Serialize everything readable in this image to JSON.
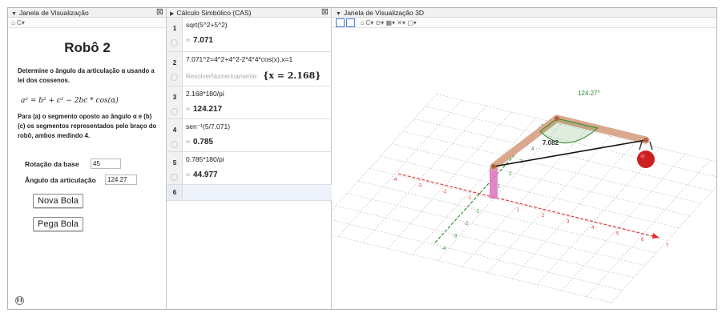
{
  "left": {
    "header": "Janela de Visualização",
    "toolbar": "⌂ C▾",
    "title": "Robô 2",
    "desc1": "Determine o ângulo da articulação α usando a lei dos cossenos.",
    "formula": "a² = b² + c² − 2bc * cos(α)",
    "desc2": "Para (a) o segmento oposto ao ângulo α e (b) (c) os segmentos representados pelo braço do robô, ambos medindo 4.",
    "rot_label": "Rotação da base",
    "rot_value": "45",
    "ang_label": "Ângulo da articulação",
    "ang_value": "124.27",
    "btn_new": "Nova Bola",
    "btn_get": "Pega Bola"
  },
  "cas": {
    "header": "Cálculo Simbólico (CAS)",
    "rows": [
      {
        "n": "1",
        "input": "sqrt(5^2+5^2)",
        "approx": "≈",
        "output": "7.071",
        "hint": ""
      },
      {
        "n": "2",
        "input": "7.071^2=4^2+4^2-2*4*4*cos(x),x=1",
        "approx": "",
        "output": "{x = 2.168}",
        "hint": "ResolverNumericamente:"
      },
      {
        "n": "3",
        "input": "2.168*180/pi",
        "approx": "≈",
        "output": "124.217",
        "hint": ""
      },
      {
        "n": "4",
        "input": "sen⁻¹(5/7.071)",
        "approx": "≈",
        "output": "0.785",
        "hint": ""
      },
      {
        "n": "5",
        "input": "0.785*180/pi",
        "approx": "≈",
        "output": "44.977",
        "hint": ""
      },
      {
        "n": "6",
        "input": "",
        "approx": "",
        "output": "",
        "hint": ""
      }
    ]
  },
  "v3d": {
    "header": "Janela de Visualização 3D",
    "toolbar": "⌂ C▾ ⊙▾ ▦▾ ✕▾ ▢▾",
    "angle_label": "124.27°",
    "seg_label": "7.082",
    "x_ticks": [
      "-4",
      "-3",
      "-2",
      "-1",
      "1",
      "2",
      "3",
      "4",
      "5",
      "6",
      "7"
    ],
    "y_ticks": [
      "-4",
      "-3",
      "-2",
      "-1",
      "1",
      "2",
      "3",
      "4"
    ],
    "colors": {
      "x_axis": "#e03030",
      "y_axis": "#2a8a2a",
      "arm": "#d9a88e",
      "base": "#e070c0",
      "ball": "#cc2020",
      "angle": "#2a8a2a"
    }
  }
}
